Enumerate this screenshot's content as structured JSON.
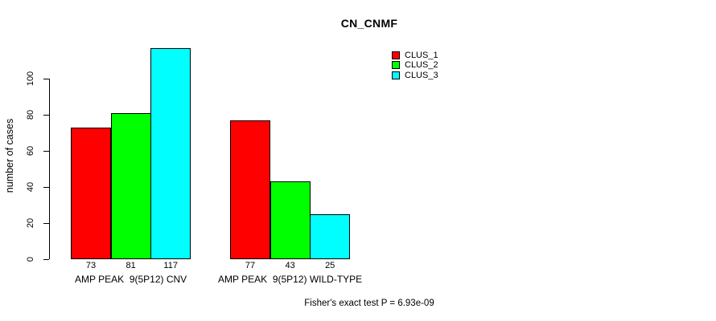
{
  "title": "CN_CNMF",
  "footer": "Fisher's exact test P = 6.93e-09",
  "chart_data": {
    "type": "bar",
    "title": "CN_CNMF",
    "xlabel": "",
    "ylabel": "number of cases",
    "ylim": [
      0,
      117
    ],
    "yticks": [
      0,
      20,
      40,
      60,
      80,
      100
    ],
    "grid": false,
    "legend_position": "top-right",
    "bar_value_labels": true,
    "categories": [
      "AMP PEAK  9(5P12) CNV",
      "AMP PEAK  9(5P12) WILD-TYPE"
    ],
    "series": [
      {
        "name": "CLUS_1",
        "color": "#ff0000",
        "values": [
          73,
          77
        ]
      },
      {
        "name": "CLUS_2",
        "color": "#00ff00",
        "values": [
          81,
          43
        ]
      },
      {
        "name": "CLUS_3",
        "color": "#00ffff",
        "values": [
          117,
          25
        ]
      }
    ]
  }
}
